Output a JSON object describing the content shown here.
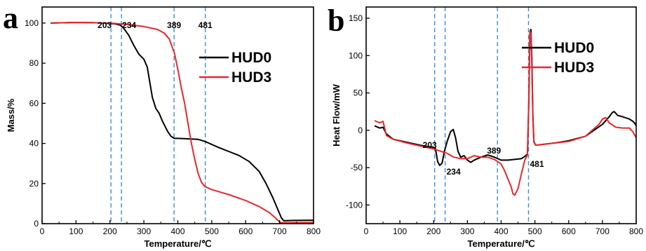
{
  "chart_data": [
    {
      "panel_label": "a",
      "type": "line",
      "xlabel": "Temperature/℃",
      "ylabel": "Mass/%",
      "xlim": [
        0,
        800
      ],
      "ylim": [
        0,
        108
      ],
      "x_ticks": [
        0,
        100,
        200,
        300,
        400,
        500,
        600,
        700,
        800
      ],
      "y_ticks": [
        0,
        20,
        40,
        60,
        80,
        100
      ],
      "grid": false,
      "legend_position": "upper-right",
      "marker_lines": [
        {
          "x": 203,
          "label": "203"
        },
        {
          "x": 234,
          "label": "234"
        },
        {
          "x": 389,
          "label": "389"
        },
        {
          "x": 481,
          "label": "481"
        }
      ],
      "series": [
        {
          "name": "HUD0",
          "color": "#000000",
          "x": [
            25,
            100,
            150,
            200,
            215,
            230,
            240,
            255,
            270,
            285,
            300,
            310,
            318,
            325,
            335,
            345,
            355,
            370,
            380,
            390,
            400,
            430,
            460,
            480,
            500,
            520,
            550,
            580,
            610,
            640,
            660,
            680,
            695,
            705,
            712,
            720,
            740,
            800
          ],
          "y": [
            100,
            100.3,
            100.2,
            99.8,
            99.6,
            99,
            97.5,
            94,
            89,
            84.5,
            82,
            78,
            70,
            63,
            57.5,
            55,
            51,
            46,
            43.5,
            42.5,
            42.5,
            42.3,
            42,
            41,
            39.5,
            38,
            36,
            34,
            31,
            26,
            20,
            13,
            7,
            3,
            1.5,
            1.5,
            1.6,
            1.7
          ]
        },
        {
          "name": "HUD3",
          "color": "#e8282b",
          "x": [
            25,
            100,
            200,
            250,
            300,
            340,
            360,
            375,
            390,
            400,
            410,
            420,
            430,
            440,
            450,
            460,
            470,
            480,
            500,
            550,
            600,
            640,
            670,
            690,
            700,
            705,
            720,
            800
          ],
          "y": [
            100,
            100.3,
            100,
            99.3,
            98.3,
            96.8,
            95,
            92,
            85,
            77,
            68,
            60,
            50,
            40,
            32,
            25,
            20.5,
            18.5,
            17,
            14.5,
            11.5,
            8.5,
            5.5,
            2.5,
            0.8,
            0.5,
            0.5,
            0.6
          ]
        }
      ]
    },
    {
      "panel_label": "b",
      "type": "line",
      "xlabel": "Temperature/℃",
      "ylabel": "Heat Flow/mW",
      "xlim": [
        0,
        800
      ],
      "ylim": [
        -125,
        165
      ],
      "x_ticks": [
        0,
        100,
        200,
        300,
        400,
        500,
        600,
        700,
        800
      ],
      "y_ticks": [
        -100,
        -50,
        0,
        50,
        100,
        150
      ],
      "grid": false,
      "legend_position": "upper-right",
      "marker_lines": [
        {
          "x": 203,
          "label": "203"
        },
        {
          "x": 234,
          "label": "234"
        },
        {
          "x": 389,
          "label": "389"
        },
        {
          "x": 481,
          "label": "481"
        }
      ],
      "series": [
        {
          "name": "HUD0",
          "color": "#000000",
          "x": [
            25,
            40,
            50,
            60,
            80,
            120,
            160,
            200,
            205,
            212,
            218,
            225,
            232,
            240,
            250,
            258,
            265,
            272,
            280,
            290,
            300,
            310,
            320,
            330,
            340,
            360,
            380,
            400,
            420,
            440,
            460,
            470,
            478,
            482,
            485,
            488,
            491,
            494,
            497,
            502,
            520,
            560,
            600,
            650,
            700,
            720,
            730,
            735,
            745,
            760,
            780,
            790,
            795,
            800
          ],
          "y": [
            6,
            3,
            4,
            -5,
            -12,
            -16,
            -20,
            -23,
            -24,
            -42,
            -47,
            -44,
            -28,
            -15,
            -2,
            1,
            -10,
            -28,
            -36,
            -34,
            -40,
            -43,
            -40,
            -38,
            -36,
            -33,
            -36,
            -40,
            -40,
            -39,
            -38,
            -35,
            -32,
            40,
            130,
            135,
            95,
            20,
            -15,
            -20,
            -19,
            -17,
            -14,
            -8,
            8,
            18,
            24,
            25,
            20,
            18,
            15,
            12,
            10,
            6
          ]
        },
        {
          "name": "HUD3",
          "color": "#e8282b",
          "x": [
            25,
            40,
            50,
            60,
            80,
            120,
            160,
            200,
            220,
            240,
            260,
            280,
            300,
            320,
            340,
            360,
            380,
            400,
            410,
            420,
            430,
            435,
            440,
            450,
            460,
            470,
            478,
            482,
            485,
            488,
            491,
            494,
            497,
            502,
            520,
            560,
            600,
            650,
            690,
            700,
            710,
            720,
            740,
            760,
            780,
            790,
            800
          ],
          "y": [
            13,
            10,
            12,
            -7,
            -12,
            -17,
            -21,
            -25,
            -28,
            -31,
            -36,
            -38,
            -38,
            -34,
            -36,
            -36,
            -39,
            -45,
            -54,
            -65,
            -76,
            -85,
            -87,
            -78,
            -58,
            -40,
            -33,
            45,
            133,
            130,
            85,
            15,
            -16,
            -20,
            -19,
            -17,
            -15,
            -8,
            8,
            15,
            17,
            10,
            4,
            3,
            3,
            -2,
            -10
          ]
        }
      ]
    }
  ]
}
